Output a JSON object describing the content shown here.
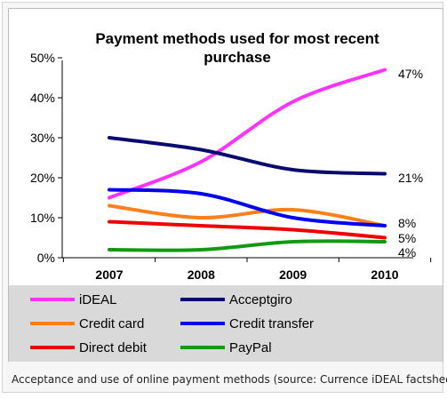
{
  "caption": "Acceptance and use of online payment methods (source: Currence iDEAL factsheet)",
  "chart_data": {
    "type": "line",
    "title_line1": "Payment methods used for most recent",
    "title_line2": "purchase",
    "categories": [
      "2007",
      "2008",
      "2009",
      "2010"
    ],
    "yticks": [
      "0%",
      "10%",
      "20%",
      "30%",
      "40%",
      "50%"
    ],
    "ylim": [
      0,
      50
    ],
    "grid": false,
    "legend_position": "bottom",
    "legend_background": "#d9d9d9",
    "series": [
      {
        "name": "iDEAL",
        "color": "#ff33ff",
        "values": [
          15,
          24,
          39,
          47
        ],
        "end_label": "47%"
      },
      {
        "name": "Acceptgiro",
        "color": "#0a0a6e",
        "values": [
          30,
          27,
          22,
          21
        ],
        "end_label": "21%"
      },
      {
        "name": "Credit card",
        "color": "#ff7f1a",
        "values": [
          13,
          10,
          12,
          8
        ],
        "end_label": "8%"
      },
      {
        "name": "Credit transfer",
        "color": "#0000ee",
        "values": [
          17,
          16,
          10,
          8
        ],
        "end_label": ""
      },
      {
        "name": "Direct debit",
        "color": "#ee0000",
        "values": [
          9,
          8,
          7,
          5
        ],
        "end_label": "5%"
      },
      {
        "name": "PayPal",
        "color": "#119911",
        "values": [
          2,
          2,
          4,
          4
        ],
        "end_label": "4%"
      }
    ]
  }
}
